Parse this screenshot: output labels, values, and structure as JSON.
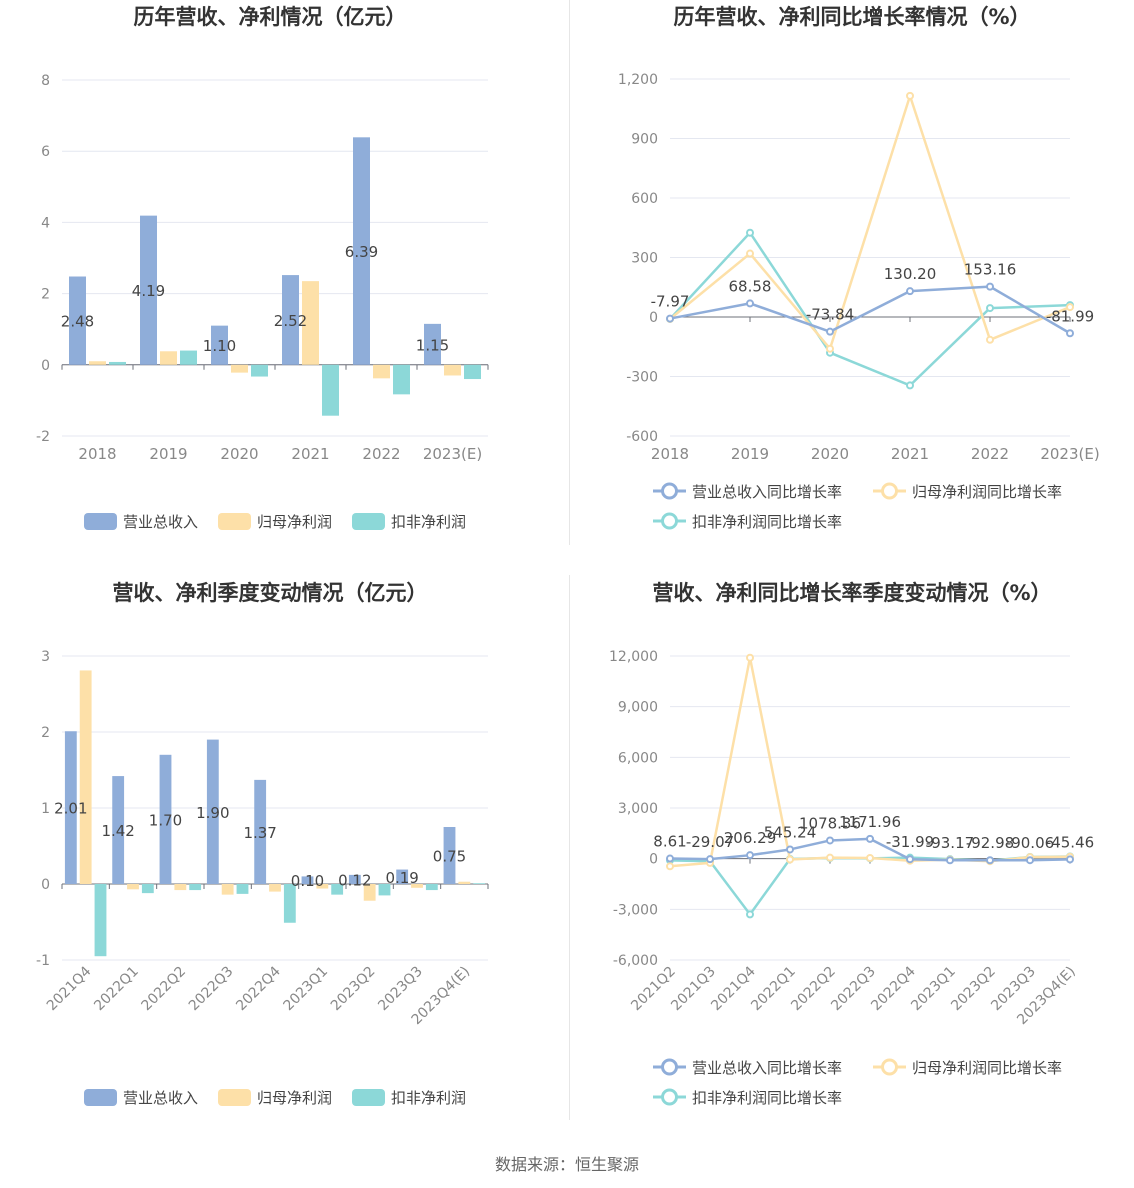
{
  "colors": {
    "revenue": "#8fadd9",
    "net_profit": "#fde0a8",
    "deducted_profit": "#8cd8d8",
    "axis_text": "#888888",
    "grid": "#e4e7f0",
    "title": "#333333",
    "label": "#444444"
  },
  "source_text": "数据来源：恒生聚源",
  "chart_data": [
    {
      "id": "annual-amounts",
      "type": "bar",
      "title": "历年营收、净利情况（亿元）",
      "categories": [
        "2018",
        "2019",
        "2020",
        "2021",
        "2022",
        "2023(E)"
      ],
      "ylim": [
        -2,
        8
      ],
      "yticks": [
        "-2",
        "0",
        "2",
        "4",
        "6",
        "8"
      ],
      "grid": true,
      "legend_position": "bottom",
      "series": [
        {
          "name": "营业总收入",
          "values": [
            2.48,
            4.19,
            1.1,
            2.52,
            6.39,
            1.15
          ],
          "labels": [
            "2.48",
            "4.19",
            "1.10",
            "2.52",
            "6.39",
            "1.15"
          ]
        },
        {
          "name": "归母净利润",
          "values": [
            0.1,
            0.38,
            -0.22,
            2.35,
            -0.38,
            -0.3
          ]
        },
        {
          "name": "扣非净利润",
          "values": [
            0.08,
            0.4,
            -0.33,
            -1.43,
            -0.83,
            -0.4
          ]
        }
      ]
    },
    {
      "id": "annual-growth",
      "type": "line",
      "title": "历年营收、净利同比增长率情况（%）",
      "categories": [
        "2018",
        "2019",
        "2020",
        "2021",
        "2022",
        "2023(E)"
      ],
      "ylim": [
        -600,
        1200
      ],
      "yticks": [
        "-600",
        "-300",
        "0",
        "300",
        "600",
        "900",
        "1,200"
      ],
      "grid": true,
      "legend_position": "bottom",
      "series": [
        {
          "name": "营业总收入同比增长率",
          "values": [
            -7.97,
            68.58,
            -73.84,
            130.2,
            153.16,
            -81.99
          ],
          "labels": [
            "-7.97",
            "68.58",
            "-73.84",
            "130.20",
            "153.16",
            "-81.99"
          ]
        },
        {
          "name": "归母净利润同比增长率",
          "values": [
            -10,
            320,
            -160,
            1115,
            -115,
            50
          ]
        },
        {
          "name": "扣非净利润同比增长率",
          "values": [
            -10,
            425,
            -180,
            -345,
            45,
            60
          ]
        }
      ]
    },
    {
      "id": "quarterly-amounts",
      "type": "bar",
      "title": "营收、净利季度变动情况（亿元）",
      "categories": [
        "2021Q4",
        "2022Q1",
        "2022Q2",
        "2022Q3",
        "2022Q4",
        "2023Q1",
        "2023Q2",
        "2023Q3",
        "2023Q4(E)"
      ],
      "ylim": [
        -1,
        3
      ],
      "yticks": [
        "-1",
        "0",
        "1",
        "2",
        "3"
      ],
      "grid": true,
      "legend_position": "bottom",
      "series": [
        {
          "name": "营业总收入",
          "values": [
            2.01,
            1.42,
            1.7,
            1.9,
            1.37,
            0.1,
            0.12,
            0.19,
            0.75
          ],
          "labels": [
            "2.01",
            "1.42",
            "1.70",
            "1.90",
            "1.37",
            "0.10",
            "0.12",
            "0.19",
            "0.75"
          ]
        },
        {
          "name": "归母净利润",
          "values": [
            2.81,
            -0.07,
            -0.08,
            -0.14,
            -0.1,
            -0.06,
            -0.22,
            -0.05,
            0.03
          ]
        },
        {
          "name": "扣非净利润",
          "values": [
            -0.95,
            -0.12,
            -0.08,
            -0.13,
            -0.51,
            -0.14,
            -0.15,
            -0.08,
            0.01
          ]
        }
      ]
    },
    {
      "id": "quarterly-growth",
      "type": "line",
      "title": "营收、净利同比增长率季度变动情况（%）",
      "categories": [
        "2021Q2",
        "2021Q3",
        "2021Q4",
        "2022Q1",
        "2022Q2",
        "2022Q3",
        "2022Q4",
        "2023Q1",
        "2023Q2",
        "2023Q3",
        "2023Q4(E)"
      ],
      "ylim": [
        -6000,
        12000
      ],
      "yticks": [
        "-6,000",
        "-3,000",
        "0",
        "3,000",
        "6,000",
        "9,000",
        "12,000"
      ],
      "grid": true,
      "legend_position": "bottom",
      "series": [
        {
          "name": "营业总收入同比增长率",
          "values": [
            8.61,
            -29.07,
            206.29,
            545.24,
            1078.36,
            1171.96,
            -31.99,
            -93.17,
            -92.98,
            -90.06,
            -45.46
          ],
          "labels": [
            "8.61",
            "-29.07",
            "206.29",
            "545.24",
            "1078.36",
            "1171.96",
            "-31.99",
            "-93.17",
            "-92.98",
            "-90.06",
            "-45.46"
          ]
        },
        {
          "name": "归母净利润同比增长率",
          "values": [
            -450,
            -250,
            11900,
            -50,
            60,
            40,
            -120,
            -60,
            -150,
            90,
            110
          ]
        },
        {
          "name": "扣非净利润同比增长率",
          "values": [
            -100,
            -150,
            -3300,
            -20,
            40,
            20,
            60,
            -30,
            -120,
            100,
            130
          ]
        }
      ]
    }
  ]
}
